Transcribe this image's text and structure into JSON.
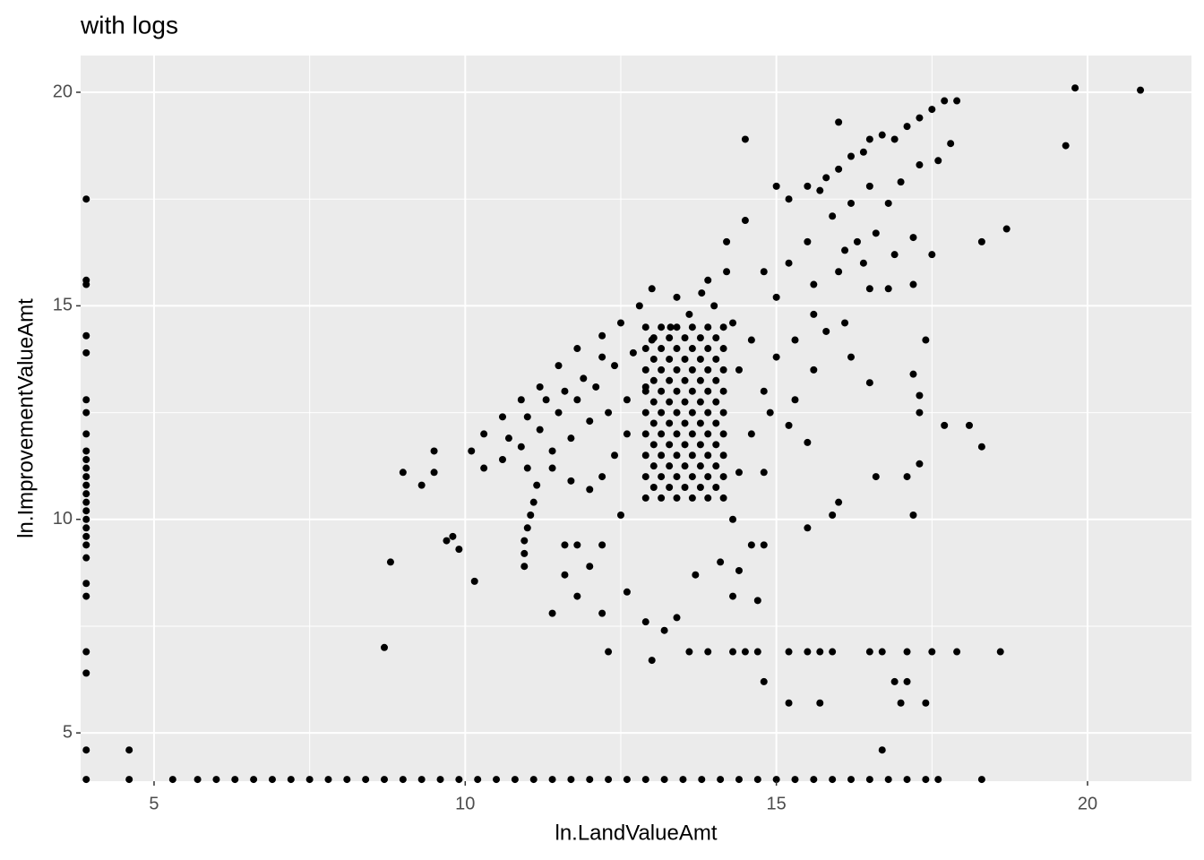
{
  "chart_data": {
    "type": "scatter",
    "title": "with logs",
    "x_label": "ln.LandValueAmt",
    "y_label": "ln.ImprovementValueAmt",
    "color": "#000000",
    "xlim": [
      3.82,
      21.67
    ],
    "ylim": [
      3.87,
      20.86
    ],
    "xticks": [
      5,
      10,
      15,
      20
    ],
    "yticks": [
      5,
      10,
      15,
      20
    ],
    "minor_xticks": [
      7.5,
      12.5,
      17.5
    ],
    "minor_yticks": [
      7.5,
      12.5,
      17.5
    ],
    "grid": true,
    "x": [
      3.91,
      4.6,
      5.3,
      5.7,
      6.0,
      6.3,
      6.6,
      6.9,
      7.2,
      7.5,
      7.8,
      8.1,
      8.4,
      8.7,
      9.0,
      9.3,
      9.6,
      9.9,
      10.2,
      10.5,
      10.8,
      11.1,
      11.4,
      11.7,
      12.0,
      12.3,
      12.6,
      12.9,
      13.2,
      13.5,
      13.8,
      14.1,
      14.4,
      14.7,
      15.0,
      15.3,
      15.6,
      15.9,
      16.2,
      16.5,
      16.8,
      17.1,
      17.4,
      17.6,
      18.3,
      3.91,
      3.91,
      3.91,
      3.91,
      3.91,
      3.91,
      3.91,
      3.91,
      3.91,
      3.91,
      3.91,
      3.91,
      3.91,
      3.91,
      3.91,
      3.91,
      3.91,
      3.91,
      3.91,
      3.91,
      3.91,
      3.91,
      3.91,
      3.91,
      3.91,
      3.91,
      4.6,
      8.7,
      8.8,
      9.0,
      9.3,
      9.5,
      9.5,
      9.7,
      9.8,
      9.9,
      10.15,
      12.3,
      13.0,
      13.6,
      13.9,
      14.3,
      14.5,
      14.7,
      15.2,
      15.5,
      15.7,
      15.9,
      16.5,
      16.7,
      17.1,
      17.5,
      17.9,
      18.6,
      14.8,
      16.9,
      17.1,
      15.2,
      15.7,
      17.0,
      17.4,
      16.7,
      19.8,
      20.85,
      19.65,
      18.7,
      18.3,
      18.3,
      18.1,
      17.7,
      17.3,
      17.3,
      17.2,
      17.4,
      17.3,
      17.2,
      17.1,
      16.6,
      15.5,
      15.9,
      16.0,
      14.4,
      14.8,
      14.7,
      14.3,
      14.4,
      14.6,
      14.3,
      14.8,
      11.4,
      12.2,
      12.6,
      12.9,
      13.2,
      13.4,
      11.6,
      11.8,
      12.0,
      11.6,
      11.8,
      12.2,
      14.1,
      13.7,
      12.5,
      14.5,
      10.95,
      10.95,
      10.95,
      11.0,
      11.05,
      11.1,
      11.15,
      13.8,
      14.2,
      14.5,
      15.0,
      15.2,
      15.5,
      15.8,
      16.0,
      16.2,
      16.4,
      16.5,
      16.7,
      16.9,
      17.1,
      17.3,
      17.5,
      17.7,
      17.9,
      16.0,
      15.7,
      15.9,
      16.2,
      16.5,
      16.8,
      17.0,
      17.3,
      17.6,
      17.8,
      16.3,
      16.6,
      16.9,
      17.2,
      16.4,
      16.1,
      15.5,
      15.2,
      14.8,
      15.0,
      15.6,
      16.0,
      16.5,
      16.8,
      17.2,
      17.5,
      15.6,
      15.8,
      16.1,
      15.3,
      15.0,
      15.6,
      16.2,
      16.5,
      15.3,
      14.9,
      15.2,
      15.5,
      14.6,
      14.8,
      14.4,
      14.6,
      14.3,
      14.0,
      13.4,
      13.0,
      12.8,
      12.5,
      12.2,
      11.8,
      11.5,
      11.2,
      10.9,
      10.6,
      10.3,
      10.1,
      10.3,
      10.6,
      10.9,
      11.2,
      11.5,
      11.8,
      12.1,
      12.4,
      12.7,
      13.0,
      13.3,
      13.6,
      13.9,
      14.2,
      11.0,
      11.3,
      11.6,
      11.9,
      12.2,
      10.7,
      11.0,
      11.4,
      11.7,
      12.0,
      12.3,
      12.6,
      12.9,
      12.6,
      12.4,
      12.2,
      12.0,
      11.7,
      11.4,
      12.9,
      13.15,
      13.4,
      13.65,
      13.9,
      14.15,
      12.9,
      13.15,
      13.4,
      13.65,
      13.9,
      14.15,
      12.9,
      13.15,
      13.4,
      13.65,
      13.9,
      14.15,
      12.9,
      13.15,
      13.4,
      13.65,
      13.9,
      14.15,
      12.9,
      13.15,
      13.4,
      13.65,
      13.9,
      14.15,
      12.9,
      13.15,
      13.4,
      13.65,
      13.9,
      14.15,
      12.9,
      13.15,
      13.4,
      13.65,
      13.9,
      14.15,
      12.9,
      13.15,
      13.4,
      13.65,
      13.9,
      14.15,
      12.9,
      13.15,
      13.4,
      13.65,
      13.9,
      14.15,
      13.03,
      13.28,
      13.53,
      13.78,
      14.03,
      13.03,
      13.28,
      13.53,
      13.78,
      14.03,
      13.03,
      13.28,
      13.53,
      13.78,
      14.03,
      13.03,
      13.28,
      13.53,
      13.78,
      14.03,
      13.03,
      13.28,
      13.53,
      13.78,
      14.03,
      13.03,
      13.28,
      13.53,
      13.78,
      14.03,
      13.03,
      13.28,
      13.53,
      13.78,
      14.03,
      13.03,
      13.28,
      13.53,
      13.78,
      14.03
    ],
    "values": [
      3.91,
      3.91,
      3.91,
      3.91,
      3.91,
      3.91,
      3.91,
      3.91,
      3.91,
      3.91,
      3.91,
      3.91,
      3.91,
      3.91,
      3.91,
      3.91,
      3.91,
      3.91,
      3.91,
      3.91,
      3.91,
      3.91,
      3.91,
      3.91,
      3.91,
      3.91,
      3.91,
      3.91,
      3.91,
      3.91,
      3.91,
      3.91,
      3.91,
      3.91,
      3.91,
      3.91,
      3.91,
      3.91,
      3.91,
      3.91,
      3.91,
      3.91,
      3.91,
      3.91,
      3.91,
      17.5,
      15.6,
      15.5,
      14.3,
      13.9,
      12.8,
      12.5,
      12.0,
      11.6,
      11.4,
      11.2,
      11.0,
      10.8,
      10.6,
      10.4,
      10.2,
      10.0,
      9.8,
      9.6,
      9.4,
      9.1,
      8.5,
      8.2,
      6.9,
      6.4,
      4.6,
      4.6,
      7.0,
      9.0,
      11.1,
      10.8,
      11.6,
      11.1,
      9.5,
      9.6,
      9.3,
      8.55,
      6.9,
      6.7,
      6.9,
      6.9,
      6.9,
      6.9,
      6.9,
      6.9,
      6.9,
      6.9,
      6.9,
      6.9,
      6.9,
      6.9,
      6.9,
      6.9,
      6.9,
      6.2,
      6.2,
      6.2,
      5.7,
      5.7,
      5.7,
      5.7,
      4.6,
      20.1,
      20.05,
      18.75,
      16.8,
      16.5,
      11.7,
      12.2,
      12.2,
      12.5,
      12.9,
      13.4,
      14.2,
      11.3,
      10.1,
      11.0,
      11.0,
      9.8,
      10.1,
      10.4,
      11.1,
      11.1,
      8.1,
      8.2,
      8.8,
      9.4,
      10.0,
      9.4,
      7.8,
      7.8,
      8.3,
      7.6,
      7.4,
      7.7,
      8.7,
      8.2,
      8.9,
      9.4,
      9.4,
      9.4,
      9.0,
      8.7,
      10.1,
      18.9,
      8.9,
      9.2,
      9.5,
      9.8,
      10.1,
      10.4,
      10.8,
      15.3,
      16.5,
      17.0,
      17.8,
      17.5,
      17.8,
      18.0,
      18.2,
      18.5,
      18.6,
      18.9,
      19.0,
      18.9,
      19.2,
      19.4,
      19.6,
      19.8,
      19.8,
      19.3,
      17.7,
      17.1,
      17.4,
      17.8,
      17.4,
      17.9,
      18.3,
      18.4,
      18.8,
      16.5,
      16.7,
      16.2,
      16.6,
      16.0,
      16.3,
      16.5,
      16.0,
      15.8,
      15.2,
      15.5,
      15.8,
      15.4,
      15.4,
      15.5,
      16.2,
      14.8,
      14.4,
      14.6,
      14.2,
      13.8,
      13.5,
      13.8,
      13.2,
      12.8,
      12.5,
      12.2,
      11.8,
      12.0,
      13.0,
      13.5,
      14.2,
      14.6,
      15.0,
      15.2,
      15.4,
      15.0,
      14.6,
      14.3,
      14.0,
      13.6,
      13.1,
      12.8,
      12.4,
      12.0,
      11.6,
      11.2,
      11.4,
      11.7,
      12.1,
      12.5,
      12.8,
      13.1,
      13.6,
      13.9,
      14.2,
      14.5,
      14.8,
      15.6,
      15.8,
      12.4,
      12.8,
      13.0,
      13.3,
      13.8,
      11.9,
      11.2,
      11.6,
      11.9,
      12.3,
      12.5,
      12.8,
      13.1,
      12.0,
      11.5,
      11.0,
      10.7,
      10.9,
      11.2,
      10.5,
      10.5,
      10.5,
      10.5,
      10.5,
      10.5,
      11.0,
      11.0,
      11.0,
      11.0,
      11.0,
      11.0,
      11.5,
      11.5,
      11.5,
      11.5,
      11.5,
      11.5,
      12.0,
      12.0,
      12.0,
      12.0,
      12.0,
      12.0,
      12.5,
      12.5,
      12.5,
      12.5,
      12.5,
      12.5,
      13.0,
      13.0,
      13.0,
      13.0,
      13.0,
      13.0,
      13.5,
      13.5,
      13.5,
      13.5,
      13.5,
      13.5,
      14.0,
      14.0,
      14.0,
      14.0,
      14.0,
      14.0,
      14.5,
      14.5,
      14.5,
      14.5,
      14.5,
      14.5,
      10.75,
      10.75,
      10.75,
      10.75,
      10.75,
      11.25,
      11.25,
      11.25,
      11.25,
      11.25,
      11.75,
      11.75,
      11.75,
      11.75,
      11.75,
      12.25,
      12.25,
      12.25,
      12.25,
      12.25,
      12.75,
      12.75,
      12.75,
      12.75,
      12.75,
      13.25,
      13.25,
      13.25,
      13.25,
      13.25,
      13.75,
      13.75,
      13.75,
      13.75,
      13.75,
      14.25,
      14.25,
      14.25,
      14.25,
      14.25
    ]
  }
}
